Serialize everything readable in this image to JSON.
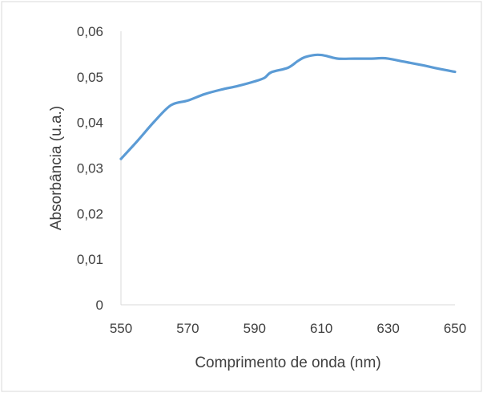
{
  "chart_data": {
    "type": "line",
    "title": "",
    "xlabel": "Comprimento de onda (nm)",
    "ylabel": "Absorbância (u.a.)",
    "xlim": [
      550,
      650
    ],
    "ylim": [
      0,
      0.06
    ],
    "x_ticks": [
      550,
      570,
      590,
      610,
      630,
      650
    ],
    "y_ticks": [
      0,
      0.01,
      0.02,
      0.03,
      0.04,
      0.05,
      0.06
    ],
    "x_tick_labels": [
      "550",
      "570",
      "590",
      "610",
      "630",
      "650"
    ],
    "y_tick_labels": [
      "0",
      "0,01",
      "0,02",
      "0,03",
      "0,04",
      "0,05",
      "0,06"
    ],
    "grid": false,
    "legend": "none",
    "series": [
      {
        "color": "#5b9bd5",
        "x": [
          550,
          555,
          560,
          565,
          570,
          575,
          580,
          585,
          590,
          593,
          595,
          600,
          603,
          605,
          608,
          610,
          612,
          615,
          620,
          625,
          628,
          630,
          635,
          640,
          645,
          650
        ],
        "y": [
          0.032,
          0.036,
          0.0402,
          0.0438,
          0.0448,
          0.0462,
          0.0472,
          0.048,
          0.049,
          0.0498,
          0.051,
          0.052,
          0.0535,
          0.0543,
          0.0548,
          0.0548,
          0.0545,
          0.054,
          0.054,
          0.054,
          0.0541,
          0.054,
          0.0533,
          0.0526,
          0.0518,
          0.0511
        ]
      }
    ]
  },
  "colors": {
    "line": "#5b9bd5",
    "axis": "#d9d9d9",
    "text": "#404040",
    "border": "#d9d9d9"
  }
}
